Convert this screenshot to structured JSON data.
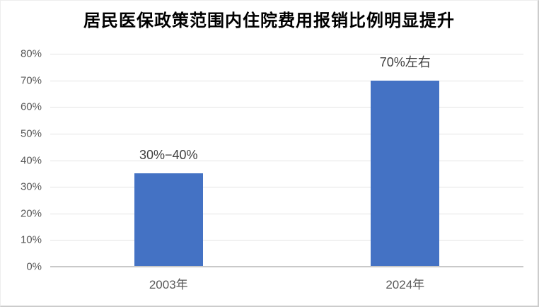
{
  "chart_data": {
    "type": "bar",
    "title": "居民医保政策范围内住院费用报销比例明显提升",
    "categories": [
      "2003年",
      "2024年"
    ],
    "values": [
      35,
      70
    ],
    "data_labels": [
      "30%−40%",
      "70%左右"
    ],
    "ytick_labels": [
      "0%",
      "10%",
      "20%",
      "30%",
      "40%",
      "50%",
      "60%",
      "70%",
      "80%"
    ],
    "ylim": [
      0,
      80
    ],
    "ytick_step": 10,
    "xlabel": "",
    "ylabel": "",
    "grid": true,
    "legend": false,
    "colors": {
      "bar": "#4472C4",
      "gridline": "#e4e4e4",
      "axis_line": "#c9c9c9",
      "tick_label": "#595959",
      "data_label": "#404040",
      "title": "#000000",
      "background": "#ffffff"
    }
  }
}
